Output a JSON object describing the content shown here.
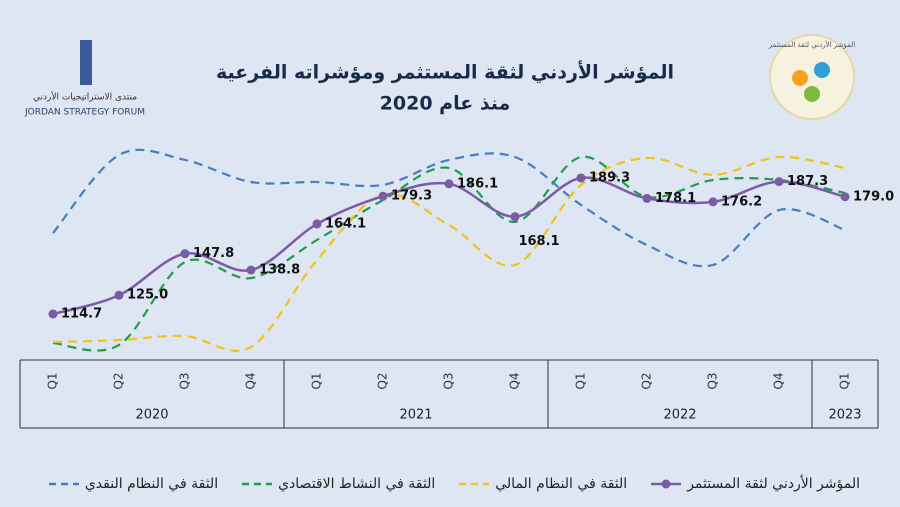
{
  "chart_data": {
    "type": "line",
    "title": "المؤشر الأردني لثقة المستثمر ومؤشراته الفرعية",
    "subtitle": "منذ عام 2020",
    "brand": {
      "name_ar": "منتدى الاستراتيجيات الأردني",
      "name_en": "JORDAN STRATEGY FORUM",
      "index_logo": "المؤشر الأردني لثقة المستثمر"
    },
    "categories": [
      "Q1",
      "Q2",
      "Q3",
      "Q4",
      "Q1",
      "Q2",
      "Q3",
      "Q4",
      "Q1",
      "Q2",
      "Q3",
      "Q4",
      "Q1"
    ],
    "year_groups": [
      {
        "label": "2020",
        "count": 4
      },
      {
        "label": "2021",
        "count": 4
      },
      {
        "label": "2022",
        "count": 4
      },
      {
        "label": "2023",
        "count": 1
      }
    ],
    "series": [
      {
        "name": "المؤشر الأردني لثقة المستثمر",
        "color": "#7b5aa6",
        "style": "solid",
        "values": [
          114.7,
          125.0,
          147.8,
          138.8,
          164.1,
          179.3,
          186.1,
          168.1,
          189.3,
          178.1,
          176.2,
          187.3,
          179.0
        ],
        "value_labels": [
          "114.7",
          "125.0",
          "147.8",
          "138.8",
          "164.1",
          "179.3",
          "186.1",
          "168.1",
          "189.3",
          "178.1",
          "176.2",
          "187.3",
          "179.0"
        ]
      },
      {
        "name": "الثقة في النظام المالي",
        "color": "#f2c21b",
        "style": "dashed",
        "values": [
          99.3,
          100.4,
          102.6,
          96.6,
          144.3,
          180.0,
          163.5,
          141.6,
          185.5,
          200.3,
          191.0,
          200.8,
          194.8
        ]
      },
      {
        "name": "الثقة في النشاط الاقتصادي",
        "color": "#1e9e4a",
        "style": "dashed",
        "values": [
          98.8,
          97.7,
          143.2,
          134.4,
          155.3,
          177.2,
          194.8,
          165.2,
          200.8,
          178.9,
          188.2,
          188.2,
          181.1
        ]
      },
      {
        "name": "الثقة في النظام النقدي",
        "color": "#4a7cc4",
        "style": "dashed",
        "values": [
          159.1,
          201.9,
          199.2,
          187.1,
          187.1,
          185.5,
          199.2,
          200.8,
          174.5,
          152.5,
          141.6,
          171.7,
          160.8
        ]
      }
    ]
  }
}
